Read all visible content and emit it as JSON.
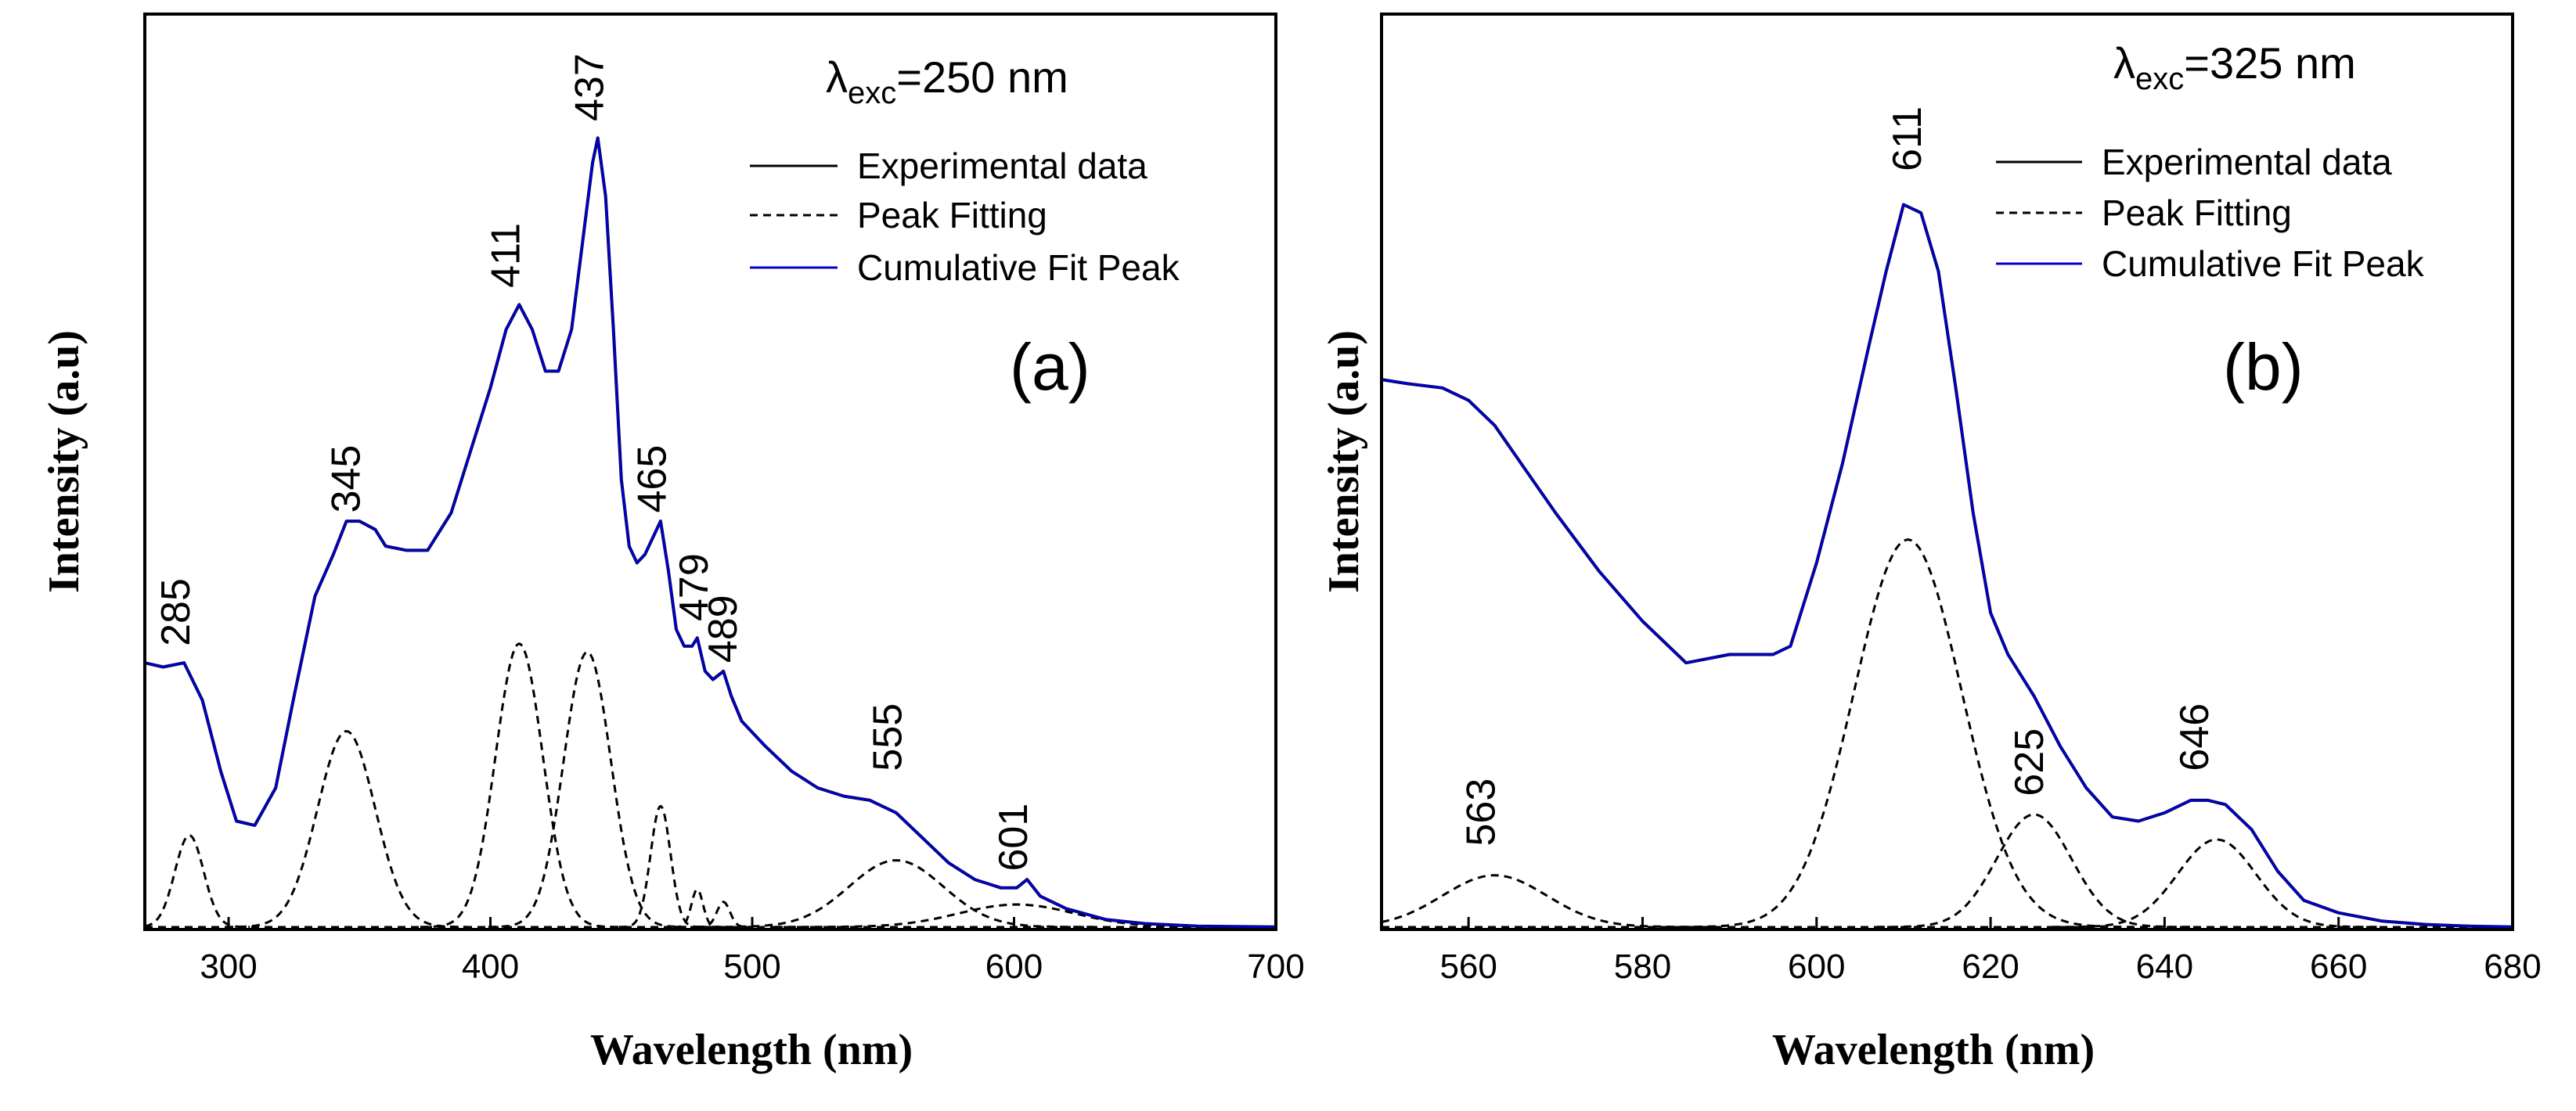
{
  "chart_data": [
    {
      "panel": "(a)",
      "type": "line",
      "excitation": {
        "symbol": "λ",
        "subscript": "exc",
        "value": "=250 nm"
      },
      "xlabel": "Wavelength (nm)",
      "ylabel": "Intensity (a.u)",
      "xlim": [
        268,
        700
      ],
      "ylim": [
        0,
        1.0
      ],
      "xticks": [
        300,
        400,
        500,
        600,
        700
      ],
      "legend": [
        {
          "label": "Experimental data",
          "style": "solid",
          "color": "#000000"
        },
        {
          "label": "Peak Fitting",
          "style": "dashed",
          "color": "#000000"
        },
        {
          "label": "Cumulative Fit Peak",
          "style": "solid",
          "color": "#0000cc"
        }
      ],
      "series": [
        {
          "name": "Cumulative Fit Peak",
          "x": [
            268,
            275,
            283,
            290,
            297,
            303,
            310,
            318,
            325,
            333,
            340,
            345,
            350,
            356,
            360,
            368,
            376,
            385,
            393,
            400,
            406,
            411,
            416,
            421,
            426,
            431,
            435,
            439,
            441,
            444,
            447,
            450,
            453,
            456,
            459,
            462,
            465,
            468,
            471,
            474,
            477,
            479,
            482,
            485,
            489,
            492,
            496,
            505,
            515,
            525,
            535,
            545,
            555,
            565,
            575,
            585,
            595,
            601,
            605,
            610,
            620,
            635,
            650,
            670,
            700
          ],
          "y": [
            0.32,
            0.315,
            0.32,
            0.275,
            0.19,
            0.13,
            0.125,
            0.17,
            0.28,
            0.4,
            0.45,
            0.49,
            0.49,
            0.48,
            0.46,
            0.455,
            0.455,
            0.5,
            0.58,
            0.65,
            0.72,
            0.75,
            0.72,
            0.67,
            0.67,
            0.72,
            0.82,
            0.92,
            0.95,
            0.88,
            0.72,
            0.54,
            0.46,
            0.44,
            0.45,
            0.47,
            0.49,
            0.43,
            0.36,
            0.34,
            0.34,
            0.35,
            0.31,
            0.3,
            0.31,
            0.28,
            0.25,
            0.22,
            0.19,
            0.17,
            0.16,
            0.155,
            0.14,
            0.11,
            0.08,
            0.06,
            0.05,
            0.05,
            0.06,
            0.04,
            0.025,
            0.012,
            0.007,
            0.004,
            0.003
          ]
        },
        {
          "name": "Peak Fitting 285",
          "center": 285,
          "height": 0.11,
          "sigma": 5.5
        },
        {
          "name": "Peak Fitting 345",
          "center": 345,
          "height": 0.235,
          "sigma": 11
        },
        {
          "name": "Peak Fitting 411",
          "center": 411,
          "height": 0.34,
          "sigma": 9
        },
        {
          "name": "Peak Fitting 437",
          "center": 437,
          "height": 0.33,
          "sigma": 9
        },
        {
          "name": "Peak Fitting 465",
          "center": 465,
          "height": 0.145,
          "sigma": 3.8
        },
        {
          "name": "Peak Fitting 479",
          "center": 479,
          "height": 0.045,
          "sigma": 2.2
        },
        {
          "name": "Peak Fitting 489",
          "center": 489,
          "height": 0.03,
          "sigma": 2.5
        },
        {
          "name": "Peak Fitting 555",
          "center": 555,
          "height": 0.08,
          "sigma": 18
        },
        {
          "name": "Peak Fitting 601",
          "center": 601,
          "height": 0.027,
          "sigma": 22
        }
      ],
      "peak_labels": [
        {
          "text": "285",
          "x": 285,
          "y": 0.34
        },
        {
          "text": "345",
          "x": 350,
          "y": 0.5
        },
        {
          "text": "411",
          "x": 411,
          "y": 0.77
        },
        {
          "text": "437",
          "x": 443,
          "y": 0.97
        },
        {
          "text": "465",
          "x": 467,
          "y": 0.5
        },
        {
          "text": "479",
          "x": 483,
          "y": 0.37
        },
        {
          "text": "489",
          "x": 494,
          "y": 0.32
        },
        {
          "text": "555",
          "x": 557,
          "y": 0.19
        },
        {
          "text": "601",
          "x": 605,
          "y": 0.07
        }
      ]
    },
    {
      "panel": "(b)",
      "type": "line",
      "excitation": {
        "symbol": "λ",
        "subscript": "exc",
        "value": "=325 nm"
      },
      "xlabel": "Wavelength (nm)",
      "ylabel": "Intensity (a.u)",
      "xlim": [
        550,
        680
      ],
      "ylim": [
        0,
        1.0
      ],
      "xticks": [
        560,
        580,
        600,
        620,
        640,
        660,
        680
      ],
      "legend": [
        {
          "label": "Experimental data",
          "style": "solid",
          "color": "#000000"
        },
        {
          "label": "Peak Fitting",
          "style": "dashed",
          "color": "#000000"
        },
        {
          "label": "Cumulative Fit Peak",
          "style": "solid",
          "color": "#0000cc"
        }
      ],
      "series": [
        {
          "name": "Cumulative Fit Peak",
          "x": [
            550,
            553,
            557,
            560,
            563,
            566,
            570,
            575,
            580,
            585,
            590,
            593,
            595,
            597,
            600,
            603,
            606,
            608,
            610,
            612,
            614,
            616,
            618,
            620,
            622,
            625,
            628,
            631,
            634,
            637,
            640,
            643,
            645,
            647,
            650,
            653,
            656,
            660,
            665,
            670,
            675,
            680
          ],
          "y": [
            0.66,
            0.655,
            0.65,
            0.635,
            0.605,
            0.56,
            0.5,
            0.43,
            0.37,
            0.32,
            0.33,
            0.33,
            0.33,
            0.34,
            0.44,
            0.56,
            0.7,
            0.79,
            0.87,
            0.86,
            0.79,
            0.65,
            0.5,
            0.38,
            0.33,
            0.28,
            0.22,
            0.17,
            0.135,
            0.13,
            0.14,
            0.155,
            0.155,
            0.15,
            0.12,
            0.07,
            0.035,
            0.02,
            0.01,
            0.006,
            0.004,
            0.003
          ]
        },
        {
          "name": "Peak Fitting 563",
          "center": 563,
          "height": 0.062,
          "sigma": 6
        },
        {
          "name": "Peak Fitting 611",
          "center": 610.5,
          "height": 0.465,
          "sigma": 6.2
        },
        {
          "name": "Peak Fitting 625",
          "center": 625,
          "height": 0.135,
          "sigma": 4.3
        },
        {
          "name": "Peak Fitting 646",
          "center": 646,
          "height": 0.105,
          "sigma": 4.5
        }
      ],
      "peak_labels": [
        {
          "text": "563",
          "x": 563,
          "y": 0.1
        },
        {
          "text": "611",
          "x": 612,
          "y": 0.91
        },
        {
          "text": "625",
          "x": 626,
          "y": 0.16
        },
        {
          "text": "646",
          "x": 645,
          "y": 0.19
        }
      ]
    }
  ]
}
